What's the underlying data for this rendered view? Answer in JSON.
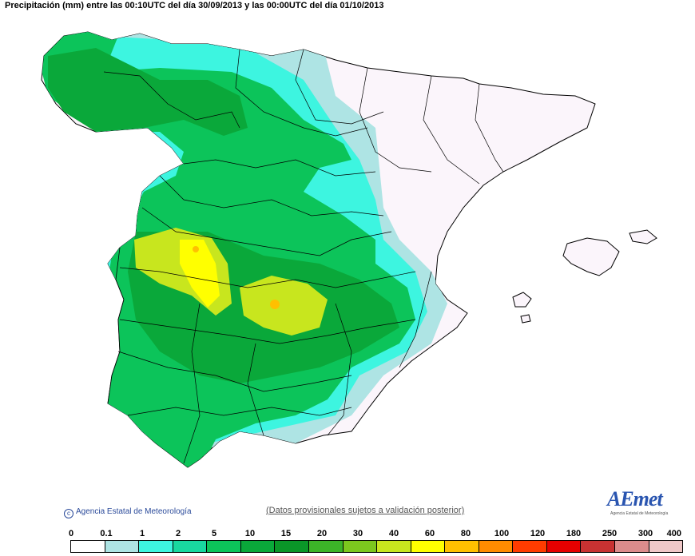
{
  "title": "Precipitación (mm) entre las 00:10UTC del día 30/09/2013 y las 00:00UTC del día 01/10/2013",
  "copyright": "Agencia Estatal de Meteorología",
  "disclaimer": "(Datos provisionales sujetos a validación posterior)",
  "logo": {
    "name": "AEmet",
    "subtitle": "Agencia Estatal de Meteorología"
  },
  "legend": {
    "ticks": [
      "0",
      "0.1",
      "1",
      "2",
      "5",
      "10",
      "15",
      "20",
      "30",
      "40",
      "60",
      "80",
      "100",
      "120",
      "180",
      "250",
      "300",
      "400"
    ],
    "colors": [
      "#ffffff",
      "#aee4e4",
      "#3df5e0",
      "#19d8a0",
      "#0cc45a",
      "#0aa83a",
      "#0a9628",
      "#3cb428",
      "#7cc81e",
      "#c8e61e",
      "#ffff00",
      "#ffc000",
      "#ff8c00",
      "#ff3c00",
      "#e60000",
      "#c83232",
      "#dc8c8c",
      "#f0c8c8"
    ]
  },
  "map_layers": {
    "land": "#fbf5fb",
    "light_cyan": "#aee4e4",
    "cyan": "#3df5e0",
    "green_light": "#0cc45a",
    "green_dark": "#0aa83a",
    "yellow_green": "#c8e61e",
    "yellow": "#ffff00",
    "orange": "#ffc000"
  }
}
